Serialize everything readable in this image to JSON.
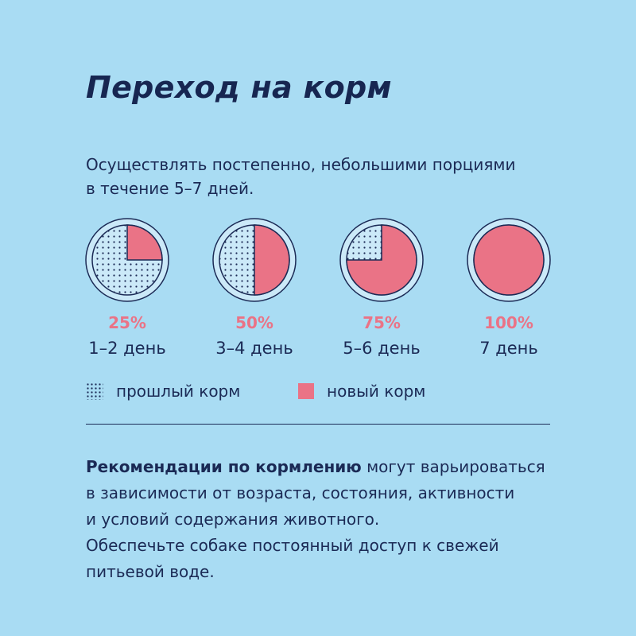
{
  "title": "Переход на корм",
  "intro": {
    "line1": "Осуществлять постепенно, небольшими порциями",
    "line2": "в течение 5–7 дней."
  },
  "colors": {
    "background": "#a9dcf3",
    "new_food": "#ea7386",
    "text": "#1b2a55"
  },
  "chart_data": {
    "type": "pie",
    "categories": [
      "1–2 день",
      "3–4 день",
      "5–6 день",
      "7 день"
    ],
    "series": [
      {
        "name": "новый корм",
        "values": [
          25,
          50,
          75,
          100
        ]
      },
      {
        "name": "прошлый корм",
        "values": [
          75,
          50,
          25,
          0
        ]
      }
    ],
    "labels": [
      "25%",
      "50%",
      "75%",
      "100%"
    ],
    "unit": "%"
  },
  "legend": {
    "old": "прошлый корм",
    "new": "новый корм"
  },
  "recommendation": {
    "bold": "Рекомендации по кормлению",
    "line1_rest": " могут варьироваться",
    "line2": "в зависимости от возраста, состояния, активности",
    "line3": "и условий содержания животного."
  },
  "water": {
    "line1": "Обеспечьте собаке постоянный доступ к свежей",
    "line2": "питьевой воде."
  }
}
